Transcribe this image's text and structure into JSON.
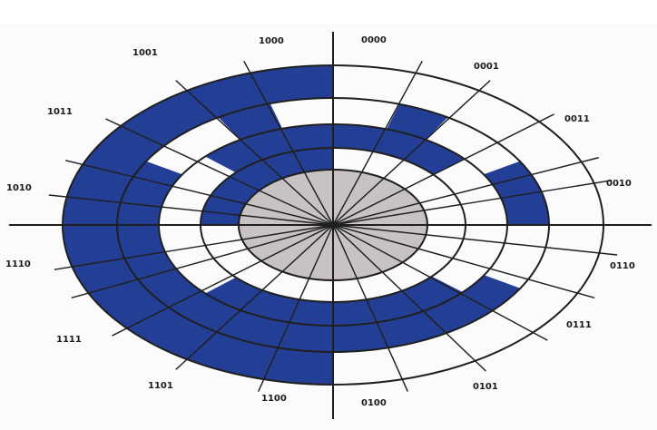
{
  "diagram": {
    "colors": {
      "band": "#233f95",
      "center": "#c8c2c2",
      "line": "#1f1f1f",
      "background": "#fbfbfb"
    },
    "labels": [
      "0000",
      "0001",
      "0011",
      "0010",
      "0110",
      "0111",
      "0101",
      "0100",
      "1100",
      "1101",
      "1111",
      "1110",
      "1010",
      "1011",
      "1001",
      "1000"
    ]
  }
}
